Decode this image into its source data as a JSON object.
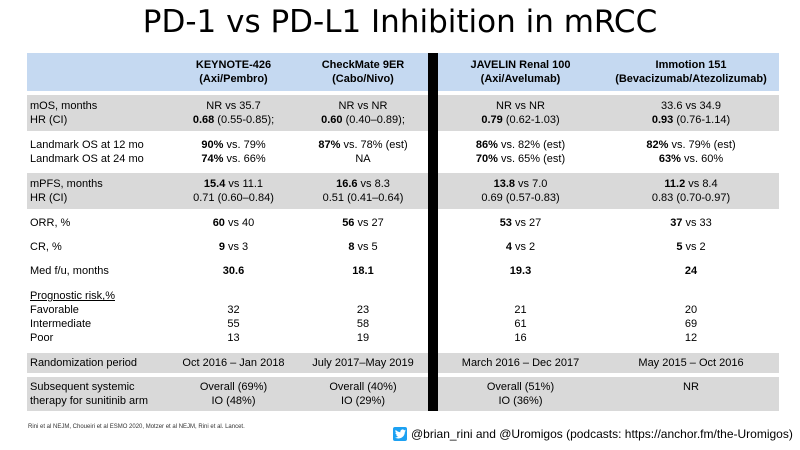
{
  "title": "PD-1 vs PD-L1 Inhibition in mRCC",
  "headers": [
    {
      "name": "KEYNOTE-426",
      "sub": "(Axi/Pembro)"
    },
    {
      "name": "CheckMate 9ER",
      "sub": "(Cabo/Nivo)"
    },
    {
      "name": "JAVELIN Renal 100",
      "sub": "(Axi/Avelumab)"
    },
    {
      "name": "Immotion 151",
      "sub": "(Bevacizumab/Atezolizumab)"
    }
  ],
  "rows": {
    "mos": {
      "label1": "mOS, months",
      "label2": "HR (CI)",
      "cells": [
        {
          "v1": "NR vs 35.7",
          "b": "0.68",
          "r": " (0.55-0.85);"
        },
        {
          "v1": "NR vs NR",
          "b": "0.60",
          "r": " (0.40–0.89);"
        },
        {
          "v1": "NR vs NR",
          "b": "0.79",
          "r": " (0.62-1.03)"
        },
        {
          "v1": "33.6 vs 34.9",
          "b": "0.93",
          "r": " (0.76-1.14)"
        }
      ]
    },
    "landmark": {
      "label1": "Landmark OS at 12 mo",
      "label2": "Landmark OS at 24 mo",
      "cells": [
        {
          "b1": "90%",
          "r1": " vs. 79%",
          "b2": "74%",
          "r2": " vs. 66%"
        },
        {
          "b1": "87%",
          "r1": " vs. 78% (est)",
          "b2": "",
          "r2": "NA"
        },
        {
          "b1": "86%",
          "r1": " vs. 82% (est)",
          "b2": "70%",
          "r2": " vs. 65% (est)"
        },
        {
          "b1": "82%",
          "r1": " vs. 79% (est)",
          "b2": "63%",
          "r2": " vs. 60%"
        }
      ]
    },
    "mpfs": {
      "label1": "mPFS, months",
      "label2": "HR (CI)",
      "cells": [
        {
          "b": "15.4",
          "r": " vs 11.1",
          "v2": "0.71 (0.60–0.84)"
        },
        {
          "b": "16.6",
          "r": " vs 8.3",
          "v2": "0.51 (0.41–0.64)"
        },
        {
          "b": "13.8",
          "r": " vs 7.0",
          "v2": "0.69 (0.57-0.83)"
        },
        {
          "b": "11.2",
          "r": " vs 8.4",
          "v2": "0.83 (0.70-0.97)"
        }
      ]
    },
    "orr": {
      "label": "ORR, %",
      "cells": [
        {
          "b": "60",
          "r": " vs 40"
        },
        {
          "b": "56",
          "r": " vs 27"
        },
        {
          "b": "53",
          "r": " vs 27"
        },
        {
          "b": "37",
          "r": " vs 33"
        }
      ]
    },
    "cr": {
      "label": "CR, %",
      "cells": [
        {
          "b": "9",
          "r": " vs 3"
        },
        {
          "b": "8",
          "r": " vs 5"
        },
        {
          "b": "4",
          "r": " vs 2"
        },
        {
          "b": "5",
          "r": " vs 2"
        }
      ]
    },
    "medfu": {
      "label": "Med f/u, months",
      "cells": [
        "30.6",
        "18.1",
        "19.3",
        "24"
      ]
    },
    "risk": {
      "label_head": "Prognostic risk,%",
      "labels": [
        "Favorable",
        "Intermediate",
        "Poor"
      ],
      "cells": [
        [
          "32",
          "55",
          "13"
        ],
        [
          "23",
          "58",
          "19"
        ],
        [
          "21",
          "61",
          "16"
        ],
        [
          "20",
          "69",
          "12"
        ]
      ]
    },
    "rand": {
      "label": "Randomization period",
      "cells": [
        "Oct 2016 – Jan 2018",
        "July 2017–May 2019",
        "March 2016 – Dec 2017",
        "May 2015 – Oct 2016"
      ]
    },
    "subsequent": {
      "label1": "Subsequent systemic",
      "label2": "therapy for sunitinib arm",
      "cells": [
        {
          "v1": "Overall (69%)",
          "v2": "IO (48%)"
        },
        {
          "v1": "Overall (40%)",
          "v2": "IO (29%)"
        },
        {
          "v1": "Overall (51%)",
          "v2": "IO (36%)"
        },
        {
          "v1": "NR",
          "v2": ""
        }
      ]
    }
  },
  "footer": {
    "refs": "Rini et al NEJM, Choueiri  et al ESMO 2020,  Motzer et al NEJM, Rini et al. Lancet.",
    "credit": "@brian_rini and @Uromigos (podcasts: https://anchor.fm/the-Uromigos)",
    "icon": "twitter-icon",
    "colors": {
      "header_bg": "#c5d9f1",
      "shade_bg": "#d9d9d9",
      "divider": "#000000",
      "twitter": "#1da1f2"
    }
  }
}
